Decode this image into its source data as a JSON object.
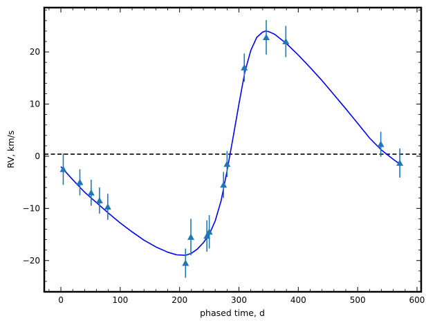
{
  "chart_data": {
    "type": "scatter",
    "title": "",
    "xlabel": "phased time, d",
    "ylabel": "RV, km/s",
    "xlim": [
      -28,
      607
    ],
    "ylim": [
      -26,
      28.5
    ],
    "xticks": [
      0,
      100,
      200,
      300,
      400,
      500,
      600
    ],
    "yticks": [
      -20,
      -10,
      0,
      10,
      20
    ],
    "xtick_labels": [
      "0",
      "100",
      "200",
      "300",
      "400",
      "500",
      "600"
    ],
    "ytick_labels": [
      "−20",
      "−10",
      "0",
      "10",
      "20"
    ],
    "grid": false,
    "reference_line": {
      "y": 0.4,
      "style": "dashed",
      "color": "#000000"
    },
    "series": [
      {
        "kind": "errorbar-points",
        "marker": "triangle-up",
        "color": "#1f77b4",
        "points": [
          {
            "x": 4,
            "y": -2.5,
            "err": 3.0
          },
          {
            "x": 32,
            "y": -5.0,
            "err": 2.5
          },
          {
            "x": 51,
            "y": -7.0,
            "err": 2.5
          },
          {
            "x": 65,
            "y": -8.5,
            "err": 2.5
          },
          {
            "x": 79,
            "y": -9.7,
            "err": 2.5
          },
          {
            "x": 210,
            "y": -20.5,
            "err": 2.8
          },
          {
            "x": 219,
            "y": -15.5,
            "err": 3.5
          },
          {
            "x": 246,
            "y": -15.3,
            "err": 3.0
          },
          {
            "x": 250,
            "y": -14.5,
            "err": 3.2
          },
          {
            "x": 274,
            "y": -5.5,
            "err": 2.5
          },
          {
            "x": 280,
            "y": -1.5,
            "err": 2.5
          },
          {
            "x": 309,
            "y": 17.0,
            "err": 2.7
          },
          {
            "x": 346,
            "y": 22.8,
            "err": 3.3
          },
          {
            "x": 379,
            "y": 22.0,
            "err": 3.0
          },
          {
            "x": 539,
            "y": 2.3,
            "err": 2.4
          },
          {
            "x": 571,
            "y": -1.3,
            "err": 2.8
          }
        ]
      },
      {
        "kind": "model-curve",
        "color": "#0000ee",
        "points": [
          [
            0,
            -2.0
          ],
          [
            20,
            -4.5
          ],
          [
            40,
            -6.9
          ],
          [
            60,
            -8.9
          ],
          [
            80,
            -10.9
          ],
          [
            100,
            -12.8
          ],
          [
            120,
            -14.5
          ],
          [
            140,
            -16.1
          ],
          [
            160,
            -17.4
          ],
          [
            180,
            -18.4
          ],
          [
            195,
            -18.9
          ],
          [
            210,
            -19.0
          ],
          [
            220,
            -18.6
          ],
          [
            230,
            -17.8
          ],
          [
            240,
            -16.6
          ],
          [
            250,
            -15.0
          ],
          [
            260,
            -12.4
          ],
          [
            270,
            -8.5
          ],
          [
            280,
            -2.8
          ],
          [
            290,
            3.5
          ],
          [
            300,
            10.0
          ],
          [
            310,
            16.2
          ],
          [
            320,
            20.3
          ],
          [
            330,
            22.8
          ],
          [
            340,
            23.8
          ],
          [
            345,
            24.0
          ],
          [
            350,
            23.9
          ],
          [
            360,
            23.4
          ],
          [
            380,
            21.6
          ],
          [
            400,
            19.4
          ],
          [
            420,
            17.0
          ],
          [
            440,
            14.5
          ],
          [
            460,
            11.8
          ],
          [
            480,
            9.1
          ],
          [
            500,
            6.3
          ],
          [
            520,
            3.5
          ],
          [
            540,
            1.2
          ],
          [
            560,
            -0.6
          ],
          [
            571,
            -1.5
          ]
        ]
      }
    ]
  }
}
